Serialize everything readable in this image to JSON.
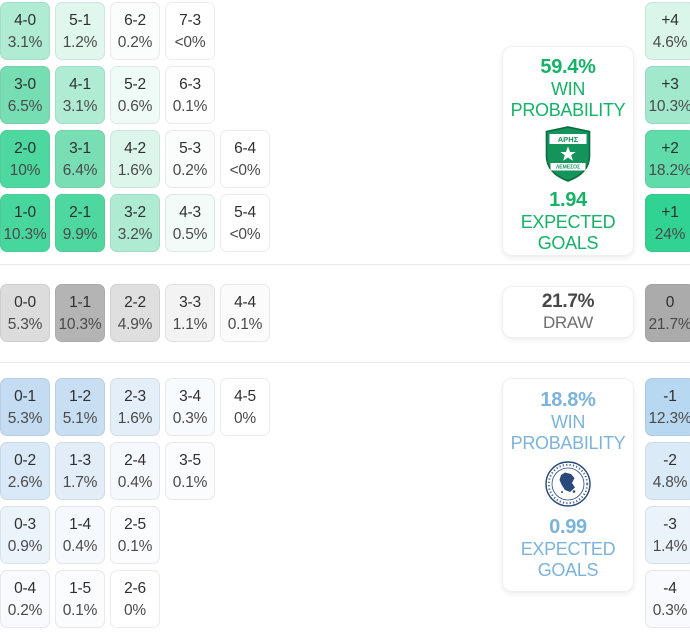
{
  "page": {
    "background": "#ffffff",
    "divider_color": "#e9e9e9"
  },
  "home_section": {
    "accent_color": "#15b267",
    "panel": {
      "win_probability_value": "59.4%",
      "win_probability_label": "WIN PROBABILITY",
      "crest": "aris-limassol-crest",
      "crest_text_top": "ΑΡΗΣ",
      "crest_text_bottom": "ΛΕΜΕΣΟΣ",
      "crest_green": "#14945a",
      "expected_goals_value": "1.94",
      "expected_goals_label": "EXPECTED GOALS"
    },
    "score_rows": [
      [
        {
          "score": "4-0",
          "pct": "3.1%",
          "bg": "#b0ecd3"
        },
        {
          "score": "5-1",
          "pct": "1.2%",
          "bg": "#e0f7ed"
        },
        {
          "score": "6-2",
          "pct": "0.2%",
          "bg": "#fbfdfc"
        },
        {
          "score": "7-3",
          "pct": "<0%",
          "bg": "#ffffff"
        }
      ],
      [
        {
          "score": "3-0",
          "pct": "6.5%",
          "bg": "#77ddb3"
        },
        {
          "score": "4-1",
          "pct": "3.1%",
          "bg": "#b0ecd3"
        },
        {
          "score": "5-2",
          "pct": "0.6%",
          "bg": "#effbf6"
        },
        {
          "score": "6-3",
          "pct": "0.1%",
          "bg": "#fdfefd"
        }
      ],
      [
        {
          "score": "2-0",
          "pct": "10%",
          "bg": "#4cd89f"
        },
        {
          "score": "3-1",
          "pct": "6.4%",
          "bg": "#79deb4"
        },
        {
          "score": "4-2",
          "pct": "1.6%",
          "bg": "#dcf6eb"
        },
        {
          "score": "5-3",
          "pct": "0.2%",
          "bg": "#fbfdfc"
        },
        {
          "score": "6-4",
          "pct": "<0%",
          "bg": "#ffffff"
        }
      ],
      [
        {
          "score": "1-0",
          "pct": "10.3%",
          "bg": "#47d79c"
        },
        {
          "score": "2-1",
          "pct": "9.9%",
          "bg": "#4ed8a0"
        },
        {
          "score": "3-2",
          "pct": "3.2%",
          "bg": "#aeebd2"
        },
        {
          "score": "4-3",
          "pct": "0.5%",
          "bg": "#f2fbf7"
        },
        {
          "score": "5-4",
          "pct": "<0%",
          "bg": "#ffffff"
        }
      ]
    ],
    "goal_diffs": [
      {
        "diff": "+4",
        "pct": "4.6%",
        "bg": "#daf5ea"
      },
      {
        "diff": "+3",
        "pct": "10.3%",
        "bg": "#a2e8cc"
      },
      {
        "diff": "+2",
        "pct": "18.2%",
        "bg": "#60dbaa"
      },
      {
        "diff": "+1",
        "pct": "24%",
        "bg": "#30d391"
      }
    ]
  },
  "draw_section": {
    "value_color": "#474747",
    "label_color": "#6e6e6e",
    "panel": {
      "draw_value": "21.7%",
      "draw_label": "DRAW"
    },
    "score_rows": [
      [
        {
          "score": "0-0",
          "pct": "5.3%",
          "bg": "#dcdcdc"
        },
        {
          "score": "1-1",
          "pct": "10.3%",
          "bg": "#b4b4b4"
        },
        {
          "score": "2-2",
          "pct": "4.9%",
          "bg": "#dfdfdf"
        },
        {
          "score": "3-3",
          "pct": "1.1%",
          "bg": "#f3f3f3"
        },
        {
          "score": "4-4",
          "pct": "0.1%",
          "bg": "#fbfbfb"
        }
      ]
    ],
    "goal_diffs": [
      {
        "diff": "0",
        "pct": "21.7%",
        "bg": "#ababab"
      }
    ]
  },
  "away_section": {
    "accent_color": "#7cb3da",
    "panel": {
      "win_probability_value": "18.8%",
      "win_probability_label": "WIN PROBABILITY",
      "crest": "away-team-crest",
      "crest_navy": "#2a4a7b",
      "expected_goals_value": "0.99",
      "expected_goals_label": "EXPECTED GOALS"
    },
    "score_rows": [
      [
        {
          "score": "0-1",
          "pct": "5.3%",
          "bg": "#c4dcf2"
        },
        {
          "score": "1-2",
          "pct": "5.1%",
          "bg": "#c7def3"
        },
        {
          "score": "2-3",
          "pct": "1.6%",
          "bg": "#e3eef9"
        },
        {
          "score": "3-4",
          "pct": "0.3%",
          "bg": "#f8fbfd"
        },
        {
          "score": "4-5",
          "pct": "0%",
          "bg": "#ffffff"
        }
      ],
      [
        {
          "score": "0-2",
          "pct": "2.6%",
          "bg": "#d9e9f7"
        },
        {
          "score": "1-3",
          "pct": "1.7%",
          "bg": "#e2edf8"
        },
        {
          "score": "2-4",
          "pct": "0.4%",
          "bg": "#f5f9fd"
        },
        {
          "score": "3-5",
          "pct": "0.1%",
          "bg": "#fafcfe"
        }
      ],
      [
        {
          "score": "0-3",
          "pct": "0.9%",
          "bg": "#ecf4fb"
        },
        {
          "score": "1-4",
          "pct": "0.4%",
          "bg": "#f5f9fd"
        },
        {
          "score": "2-5",
          "pct": "0.1%",
          "bg": "#fafcfe"
        }
      ],
      [
        {
          "score": "0-4",
          "pct": "0.2%",
          "bg": "#f8fafd"
        },
        {
          "score": "1-5",
          "pct": "0.1%",
          "bg": "#fafcfe"
        },
        {
          "score": "2-6",
          "pct": "0%",
          "bg": "#ffffff"
        }
      ]
    ],
    "goal_diffs": [
      {
        "diff": "-1",
        "pct": "12.3%",
        "bg": "#b8d7f1"
      },
      {
        "diff": "-2",
        "pct": "4.8%",
        "bg": "#dbeaf7"
      },
      {
        "diff": "-3",
        "pct": "1.4%",
        "bg": "#eaf2fa"
      },
      {
        "diff": "-4",
        "pct": "0.3%",
        "bg": "#f8fafd"
      }
    ]
  }
}
